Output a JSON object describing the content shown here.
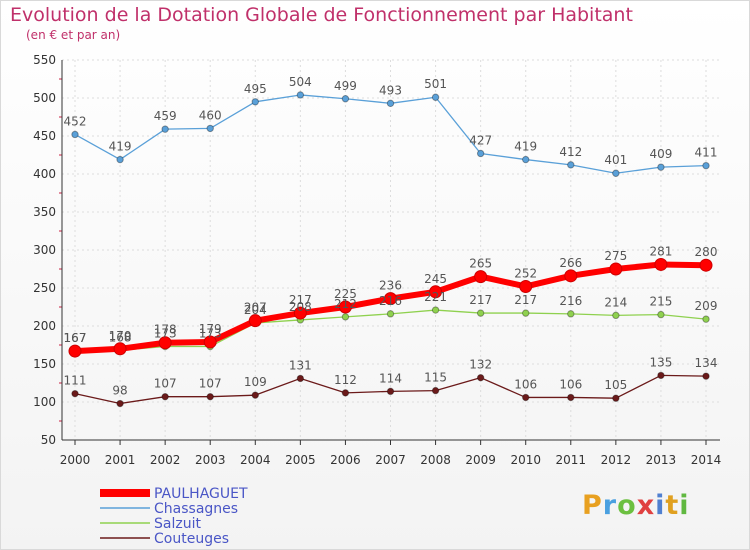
{
  "title": "Evolution de la Dotation Globale de Fonctionnement par Habitant",
  "subtitle": "(en € et par an)",
  "logo": {
    "text": "Proxiti",
    "colors": [
      "#e8a020",
      "#4aa0e0",
      "#6cc040",
      "#e04040",
      "#5080d0",
      "#e0a020",
      "#60b840"
    ]
  },
  "chart_data": {
    "type": "line",
    "x": [
      "2000",
      "2001",
      "2002",
      "2003",
      "2004",
      "2005",
      "2006",
      "2007",
      "2008",
      "2009",
      "2010",
      "2011",
      "2012",
      "2013",
      "2014"
    ],
    "ylim": [
      50,
      550
    ],
    "yticks": [
      50,
      100,
      150,
      200,
      250,
      300,
      350,
      400,
      450,
      500,
      550
    ],
    "grid": true,
    "legend_position": "bottom-left",
    "series": [
      {
        "name": "Couteuges",
        "color": "#6b1a1a",
        "values": [
          111,
          98,
          107,
          107,
          109,
          131,
          112,
          114,
          115,
          132,
          106,
          106,
          105,
          135,
          134
        ]
      },
      {
        "name": "Salzuit",
        "color": "#8fd14f",
        "values": [
          167,
          168,
          173,
          173,
          204,
          208,
          212,
          216,
          221,
          217,
          217,
          216,
          214,
          215,
          209
        ]
      },
      {
        "name": "Chassagnes",
        "color": "#5aa0d8",
        "values": [
          452,
          419,
          459,
          460,
          495,
          504,
          499,
          493,
          501,
          427,
          419,
          412,
          401,
          409,
          411
        ]
      },
      {
        "name": "PAULHAGUET",
        "color": "#ff0000",
        "values": [
          167,
          170,
          178,
          179,
          207,
          217,
          225,
          236,
          245,
          265,
          252,
          266,
          275,
          281,
          280
        ]
      }
    ],
    "legend_order": [
      "PAULHAGUET",
      "Chassagnes",
      "Salzuit",
      "Couteuges"
    ]
  }
}
